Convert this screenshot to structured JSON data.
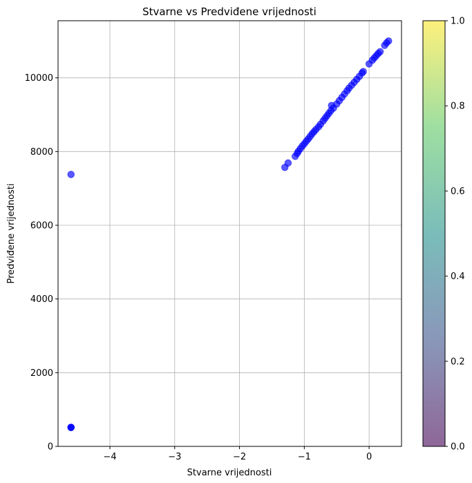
{
  "chart_data": {
    "type": "scatter",
    "title": "Stvarne vs Predviđene vrijednosti",
    "xlabel": "Stvarne vrijednosti",
    "ylabel": "Predviđene vrijednosti",
    "xlim": [
      -4.8,
      0.5
    ],
    "ylim": [
      0,
      11550
    ],
    "xticks": [
      -4,
      -3,
      -2,
      -1,
      0
    ],
    "xtick_labels": [
      "−4",
      "−3",
      "−2",
      "−1",
      "0"
    ],
    "yticks": [
      0,
      2000,
      4000,
      6000,
      8000,
      10000
    ],
    "ytick_labels": [
      "0",
      "2000",
      "4000",
      "6000",
      "8000",
      "10000"
    ],
    "grid": true,
    "point_color": "#0000ff",
    "point_alpha": 0.65,
    "points": [
      {
        "x": -4.6,
        "y": 510
      },
      {
        "x": -4.6,
        "y": 515
      },
      {
        "x": -4.6,
        "y": 520
      },
      {
        "x": -4.6,
        "y": 7380
      },
      {
        "x": -1.3,
        "y": 7570
      },
      {
        "x": -1.25,
        "y": 7690
      },
      {
        "x": -1.14,
        "y": 7870
      },
      {
        "x": -1.11,
        "y": 7950
      },
      {
        "x": -1.09,
        "y": 8010
      },
      {
        "x": -1.06,
        "y": 8080
      },
      {
        "x": -1.03,
        "y": 8150
      },
      {
        "x": -1.0,
        "y": 8210
      },
      {
        "x": -0.97,
        "y": 8280
      },
      {
        "x": -0.94,
        "y": 8340
      },
      {
        "x": -0.91,
        "y": 8410
      },
      {
        "x": -0.88,
        "y": 8480
      },
      {
        "x": -0.85,
        "y": 8540
      },
      {
        "x": -0.82,
        "y": 8600
      },
      {
        "x": -0.78,
        "y": 8670
      },
      {
        "x": -0.75,
        "y": 8740
      },
      {
        "x": -0.71,
        "y": 8830
      },
      {
        "x": -0.68,
        "y": 8900
      },
      {
        "x": -0.65,
        "y": 8970
      },
      {
        "x": -0.62,
        "y": 9040
      },
      {
        "x": -0.59,
        "y": 9110
      },
      {
        "x": -0.58,
        "y": 9250
      },
      {
        "x": -0.55,
        "y": 9180
      },
      {
        "x": -0.5,
        "y": 9290
      },
      {
        "x": -0.46,
        "y": 9380
      },
      {
        "x": -0.42,
        "y": 9470
      },
      {
        "x": -0.38,
        "y": 9560
      },
      {
        "x": -0.34,
        "y": 9650
      },
      {
        "x": -0.31,
        "y": 9720
      },
      {
        "x": -0.27,
        "y": 9800
      },
      {
        "x": -0.23,
        "y": 9880
      },
      {
        "x": -0.19,
        "y": 9960
      },
      {
        "x": -0.15,
        "y": 10040
      },
      {
        "x": -0.11,
        "y": 10130
      },
      {
        "x": -0.09,
        "y": 10170
      },
      {
        "x": 0.0,
        "y": 10380
      },
      {
        "x": 0.05,
        "y": 10480
      },
      {
        "x": 0.08,
        "y": 10540
      },
      {
        "x": 0.11,
        "y": 10600
      },
      {
        "x": 0.14,
        "y": 10660
      },
      {
        "x": 0.17,
        "y": 10710
      },
      {
        "x": 0.24,
        "y": 10880
      },
      {
        "x": 0.27,
        "y": 10950
      },
      {
        "x": 0.3,
        "y": 11000
      }
    ],
    "colorbar": {
      "range": [
        0,
        1
      ],
      "ticks": [
        0,
        0.2,
        0.4,
        0.6,
        0.8,
        1
      ],
      "tick_labels": [
        "0.0",
        "0.2",
        "0.4",
        "0.6",
        "0.8",
        "1.0"
      ],
      "colormap": [
        "#440154",
        "#3b528b",
        "#21918c",
        "#5ec962",
        "#fde725"
      ],
      "alpha": 0.6
    }
  }
}
